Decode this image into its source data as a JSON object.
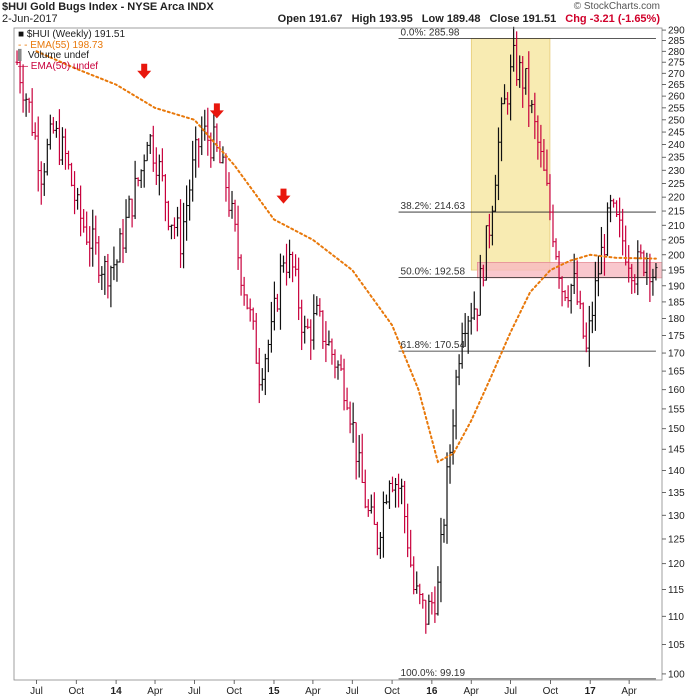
{
  "header": {
    "title": "$HUI Gold Bugs Index - NYSE Arca INDX",
    "date": "2-Jun-2017",
    "credit": "© StockCharts.com"
  },
  "ohlc": {
    "open": "Open 191.67",
    "high": "High 193.95",
    "low": "Low 189.48",
    "close": "Close 191.51",
    "chg": "Chg -3.21 (-1.65%)"
  },
  "legend": {
    "price": "$HUI (Weekly) 191.51",
    "ema55": "EMA(55) 198.73",
    "volume": "Volume undef",
    "ema50": "EMA(50) undef"
  },
  "colors": {
    "up": "#111111",
    "down": "#c8003c",
    "ema": "#e8780a",
    "highlight_box": "#f7e7a4",
    "resistance_zone": "#f8b9c0",
    "arrow": "#e8170d"
  },
  "icons": [
    "down-arrow-icon"
  ],
  "chart_data": {
    "type": "line",
    "title": "$HUI Gold Bugs Index - NYSE Arca INDX",
    "ylim": [
      99,
      291
    ],
    "y_scale": "log",
    "y_axis_side": "right",
    "y_ticks": [
      100,
      105,
      110,
      115,
      120,
      125,
      130,
      135,
      140,
      145,
      150,
      155,
      160,
      165,
      170,
      175,
      180,
      185,
      190,
      195,
      200,
      205,
      210,
      215,
      220,
      225,
      230,
      235,
      240,
      245,
      250,
      255,
      260,
      265,
      270,
      275,
      280,
      285,
      290
    ],
    "x_ticks": [
      "Jul",
      "Oct",
      "14",
      "Apr",
      "Jul",
      "Oct",
      "15",
      "Apr",
      "Jul",
      "Oct",
      "16",
      "Apr",
      "Jul",
      "Oct",
      "17",
      "Apr"
    ],
    "x_tick_dates": [
      "2013-07-01",
      "2013-10-01",
      "2014-01-01",
      "2014-04-01",
      "2014-07-01",
      "2014-10-01",
      "2015-01-01",
      "2015-04-01",
      "2015-07-01",
      "2015-10-01",
      "2016-01-01",
      "2016-04-01",
      "2016-07-01",
      "2016-10-01",
      "2017-01-01",
      "2017-04-01"
    ],
    "x_range": [
      "2013-05-10",
      "2017-06-16"
    ],
    "grid": false,
    "legend": "top-left",
    "series": [
      {
        "name": "$HUI (Weekly)",
        "type": "line",
        "x": [
          "2013-05-17",
          "2013-06-14",
          "2013-07-12",
          "2013-08-09",
          "2013-09-06",
          "2013-10-04",
          "2013-11-01",
          "2013-12-06",
          "2014-01-03",
          "2014-01-31",
          "2014-02-28",
          "2014-03-14",
          "2014-04-04",
          "2014-05-02",
          "2014-05-30",
          "2014-06-27",
          "2014-07-18",
          "2014-08-15",
          "2014-09-12",
          "2014-10-10",
          "2014-11-07",
          "2014-11-28",
          "2014-12-26",
          "2015-01-23",
          "2015-02-13",
          "2015-03-13",
          "2015-04-10",
          "2015-05-15",
          "2015-06-19",
          "2015-07-17",
          "2015-08-07",
          "2015-08-28",
          "2015-09-25",
          "2015-10-23",
          "2015-11-20",
          "2015-12-18",
          "2016-01-15",
          "2016-02-12",
          "2016-03-11",
          "2016-04-15",
          "2016-05-13",
          "2016-06-10",
          "2016-07-08",
          "2016-08-05",
          "2016-09-02",
          "2016-09-30",
          "2016-10-28",
          "2016-11-25",
          "2016-12-23",
          "2017-01-20",
          "2017-02-17",
          "2017-03-17",
          "2017-04-14",
          "2017-05-12",
          "2017-06-02"
        ],
        "values": [
          275,
          255,
          230,
          245,
          235,
          215,
          205,
          195,
          198,
          215,
          230,
          245,
          235,
          215,
          205,
          230,
          245,
          240,
          225,
          200,
          180,
          165,
          175,
          200,
          195,
          175,
          180,
          170,
          160,
          140,
          130,
          125,
          140,
          135,
          115,
          110,
          115,
          145,
          180,
          185,
          210,
          250,
          275,
          265,
          240,
          215,
          190,
          190,
          170,
          195,
          215,
          205,
          195,
          200,
          191.51
        ]
      },
      {
        "name": "EMA(55)",
        "type": "line",
        "x": [
          "2013-07-01",
          "2013-10-01",
          "2014-01-01",
          "2014-04-01",
          "2014-07-01",
          "2014-10-01",
          "2015-01-01",
          "2015-04-01",
          "2015-07-01",
          "2015-10-01",
          "2015-12-01",
          "2016-01-15",
          "2016-02-20",
          "2016-04-01",
          "2016-05-15",
          "2016-07-01",
          "2016-08-15",
          "2016-10-01",
          "2016-11-15",
          "2017-01-01",
          "2017-03-01",
          "2017-06-02"
        ],
        "values": [
          280,
          272,
          265,
          255,
          250,
          232,
          212,
          205,
          195,
          178,
          160,
          142,
          144,
          152,
          163,
          176,
          188,
          195,
          198,
          200,
          199,
          198.73
        ]
      }
    ],
    "fibonacci": {
      "anchor_start": "2015-10-16",
      "anchor_end": "2017-06-02",
      "levels": [
        {
          "label": "0.0%: 285.98",
          "value": 285.98
        },
        {
          "label": "38.2%: 214.63",
          "value": 214.63
        },
        {
          "label": "50.0%: 192.58",
          "value": 192.58
        },
        {
          "label": "61.8%: 170.54",
          "value": 170.54
        },
        {
          "label": "100.0%: 99.19",
          "value": 99.19
        }
      ]
    },
    "annotations": [
      {
        "type": "highlight_box",
        "x_start": "2016-04-01",
        "x_end": "2016-09-30",
        "y_low": 195,
        "y_high": 285.98
      },
      {
        "type": "resistance_zone",
        "x_start": "2016-04-15",
        "x_end": "2017-06-16",
        "y_low": 192.5,
        "y_high": 197.5
      },
      {
        "type": "down_arrow",
        "x": "2014-03-07",
        "y": 268
      },
      {
        "type": "down_arrow",
        "x": "2014-08-22",
        "y": 251
      },
      {
        "type": "down_arrow",
        "x": "2015-01-23",
        "y": 218
      }
    ]
  }
}
